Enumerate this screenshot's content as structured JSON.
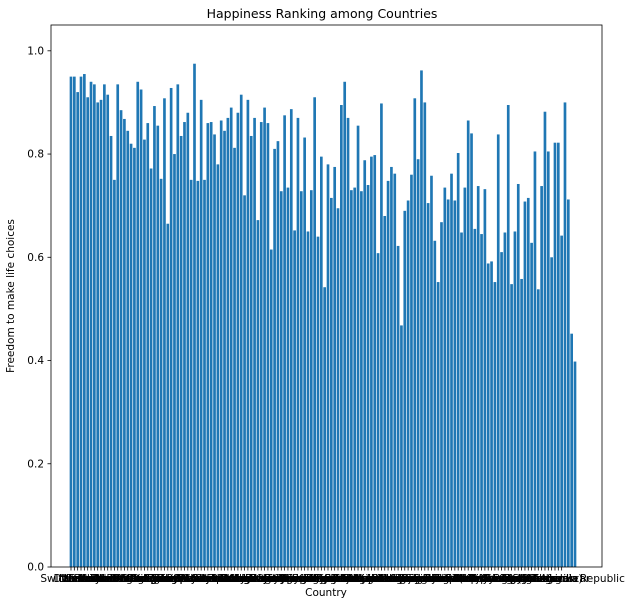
{
  "chart_data": {
    "type": "bar",
    "title": "Happiness Ranking among Countries",
    "xlabel": "Country",
    "ylabel": "Freedom to make life choices",
    "ylim": [
      0,
      1.05
    ],
    "yticks": [
      "0.0",
      "0.2",
      "0.4",
      "0.6",
      "0.8",
      "1.0"
    ],
    "ytick_values": [
      0,
      0.2,
      0.4,
      0.6,
      0.8,
      1.0
    ],
    "bar_color": "#1f77b4",
    "x_tick_labels_visible": [
      "Switzerland",
      "Iceland",
      "Denmark",
      "Norway",
      "Canada",
      "Finland",
      "Netherlands",
      "Sweden",
      "New Zealand",
      "Australia",
      "Israel",
      "Costa Rica",
      "Austria",
      "Mexico",
      "United States",
      "Brazil",
      "Luxembourg",
      "Ireland",
      "Belgium",
      "United Arab Emirates",
      "United Kingdom",
      "Oman",
      "Venezuela",
      "Singapore",
      "Panama",
      "Germany",
      "Chile",
      "Qatar",
      "France",
      "Argentina",
      "Czech Republic",
      "Uruguay",
      "Colombia",
      "Thailand",
      "Saudi Arabia",
      "Spain",
      "Malta",
      "Taiwan",
      "Kuwait",
      "Suriname",
      "Trinidad and Tobago",
      "El Salvador",
      "Guatemala",
      "Uzbekistan",
      "Slovakia",
      "Japan",
      "South Korea",
      "Ecuador",
      "Bahrain",
      "Italy",
      "Bolivia",
      "Moldova",
      "Paraguay",
      "Kazakhstan",
      "Slovenia",
      "Lithuania",
      "Nicaragua",
      "Peru",
      "Belarus",
      "Poland",
      "Malaysia",
      "Croatia",
      "Libya",
      "Russia",
      "Jamaica",
      "North Cyprus",
      "Cyprus",
      "Algeria",
      "Kosovo",
      "Turkmenistan",
      "Mauritius",
      "Hong Kong",
      "Estonia",
      "Indonesia",
      "Vietnam",
      "Turkey",
      "Kyrgyzstan",
      "Nigeria",
      "Bhutan",
      "Azerbaijan",
      "Pakistan",
      "Jordan",
      "Montenegro",
      "China",
      "Zambia",
      "Romania",
      "Serbia",
      "Portugal",
      "Latvia",
      "Philippines",
      "Somaliland region",
      "Morocco",
      "Macedonia",
      "Mozambique",
      "Albania",
      "Bosnia and Herzegovina",
      "Lesotho",
      "Dominican Republic",
      "Laos",
      "Mongolia",
      "Swaziland",
      "Greece",
      "Lebanon",
      "Hungary",
      "Honduras",
      "Tajikistan",
      "Tunisia",
      "Palestinian Territories",
      "Bangladesh",
      "Iran",
      "Ukraine",
      "Iraq",
      "South Africa",
      "Ghana",
      "Zimbabwe",
      "Liberia",
      "India",
      "Sudan",
      "Haiti",
      "Congo (Kinshasa)",
      "Nepal",
      "Ethiopia",
      "Sierra Leone",
      "Mauritania",
      "Kenya",
      "Djibouti",
      "Armenia",
      "Botswana",
      "Myanmar",
      "Georgia",
      "Malawi",
      "Sri Lanka",
      "Cameroon",
      "Bulgaria",
      "Egypt",
      "Yemen",
      "Angola",
      "Mali",
      "Congo (Brazzaville)",
      "Comoros",
      "Uganda",
      "Senegal",
      "Gabon",
      "Niger",
      "Cambodia",
      "Tanzania",
      "Madagascar",
      "Central African Republic"
    ],
    "values": [
      0.95,
      0.95,
      0.92,
      0.95,
      0.955,
      0.91,
      0.94,
      0.935,
      0.9,
      0.905,
      0.935,
      0.915,
      0.835,
      0.75,
      0.935,
      0.885,
      0.868,
      0.845,
      0.82,
      0.812,
      0.94,
      0.925,
      0.828,
      0.86,
      0.772,
      0.893,
      0.855,
      0.752,
      0.908,
      0.665,
      0.928,
      0.8,
      0.935,
      0.835,
      0.862,
      0.88,
      0.75,
      0.975,
      0.748,
      0.905,
      0.75,
      0.86,
      0.862,
      0.838,
      0.78,
      0.865,
      0.845,
      0.87,
      0.89,
      0.812,
      0.88,
      0.915,
      0.72,
      0.905,
      0.835,
      0.87,
      0.672,
      0.862,
      0.89,
      0.86,
      0.615,
      0.81,
      0.825,
      0.728,
      0.875,
      0.735,
      0.887,
      0.652,
      0.87,
      0.728,
      0.832,
      0.65,
      0.73,
      0.91,
      0.64,
      0.795,
      0.542,
      0.78,
      0.715,
      0.775,
      0.695,
      0.895,
      0.94,
      0.87,
      0.73,
      0.735,
      0.855,
      0.728,
      0.788,
      0.74,
      0.795,
      0.798,
      0.608,
      0.898,
      0.68,
      0.748,
      0.775,
      0.762,
      0.622,
      0.468,
      0.69,
      0.71,
      0.76,
      0.908,
      0.79,
      0.962,
      0.9,
      0.705,
      0.758,
      0.632,
      0.552,
      0.668,
      0.735,
      0.712,
      0.762,
      0.71,
      0.802,
      0.648,
      0.735,
      0.865,
      0.84,
      0.655,
      0.738,
      0.645,
      0.732,
      0.588,
      0.592,
      0.552,
      0.838,
      0.61,
      0.648,
      0.895,
      0.548,
      0.65,
      0.742,
      0.558,
      0.708,
      0.715,
      0.628,
      0.805,
      0.538,
      0.738,
      0.882,
      0.805,
      0.6,
      0.822,
      0.822,
      0.642,
      0.9,
      0.712,
      0.452,
      0.398
    ]
  }
}
